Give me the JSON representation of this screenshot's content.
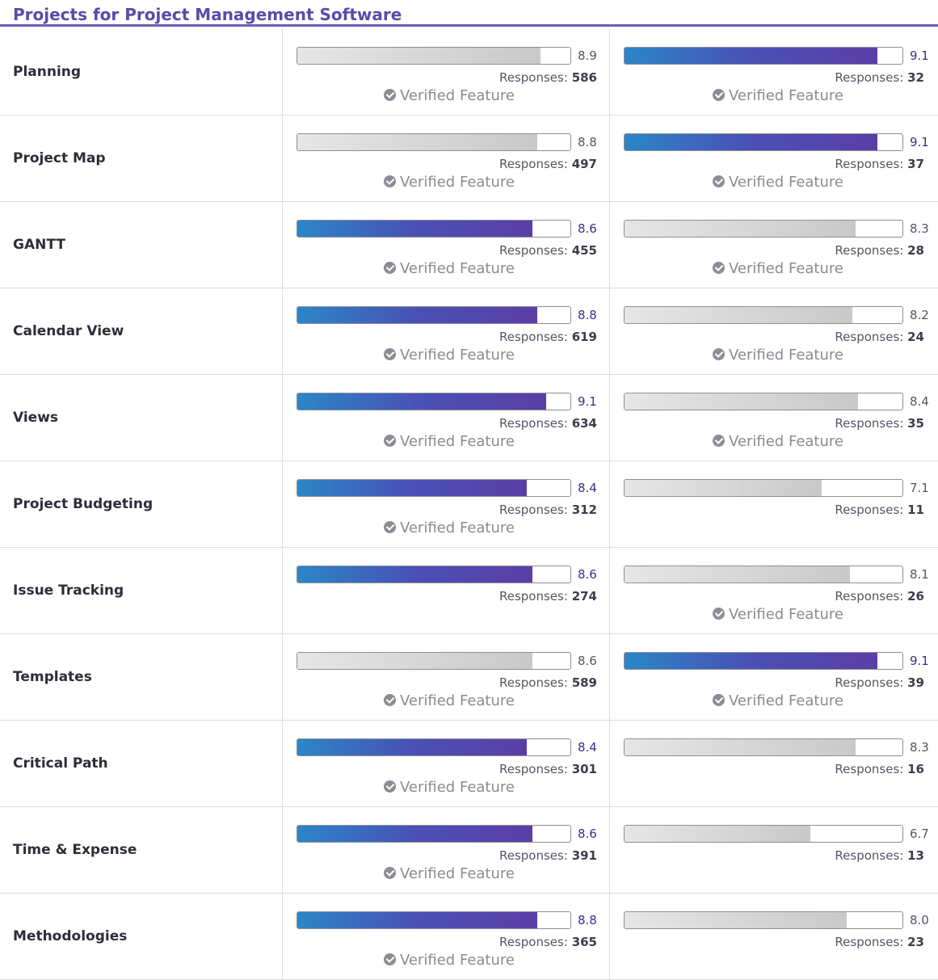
{
  "header": {
    "title": "Projects for Project Management Software"
  },
  "chart_data": {
    "type": "bar",
    "title": "Projects for Project Management Software",
    "xlim": [
      0,
      10
    ],
    "categories": [
      "Planning",
      "Project Map",
      "GANTT",
      "Calendar View",
      "Views",
      "Project Budgeting",
      "Issue Tracking",
      "Templates",
      "Critical Path",
      "Time & Expense",
      "Methodologies"
    ],
    "responses_label": "Responses:",
    "verified_label": "Verified Feature",
    "colors": {
      "higher": "#4a50b5",
      "lower": "#d4d4d4",
      "title": "#5b4aa8"
    },
    "series": [
      {
        "values": [
          8.9,
          8.8,
          8.6,
          8.8,
          9.1,
          8.4,
          8.6,
          8.6,
          8.4,
          8.6,
          8.8
        ],
        "scores": [
          "8.9",
          "8.8",
          "8.6",
          "8.8",
          "9.1",
          "8.4",
          "8.6",
          "8.6",
          "8.4",
          "8.6",
          "8.8"
        ],
        "responses": [
          586,
          497,
          455,
          619,
          634,
          312,
          274,
          589,
          301,
          391,
          365
        ],
        "highlighted": [
          false,
          false,
          true,
          true,
          true,
          true,
          true,
          false,
          true,
          true,
          true
        ],
        "verified": [
          true,
          true,
          true,
          true,
          true,
          true,
          false,
          true,
          true,
          true,
          true
        ]
      },
      {
        "values": [
          9.1,
          9.1,
          8.3,
          8.2,
          8.4,
          7.1,
          8.1,
          9.1,
          8.3,
          6.7,
          8.0
        ],
        "scores": [
          "9.1",
          "9.1",
          "8.3",
          "8.2",
          "8.4",
          "7.1",
          "8.1",
          "9.1",
          "8.3",
          "6.7",
          "8.0"
        ],
        "responses": [
          32,
          37,
          28,
          24,
          35,
          11,
          26,
          39,
          16,
          13,
          23
        ],
        "highlighted": [
          true,
          true,
          false,
          false,
          false,
          false,
          false,
          true,
          false,
          false,
          false
        ],
        "verified": [
          true,
          true,
          true,
          true,
          true,
          false,
          true,
          true,
          false,
          false,
          false
        ]
      }
    ]
  }
}
